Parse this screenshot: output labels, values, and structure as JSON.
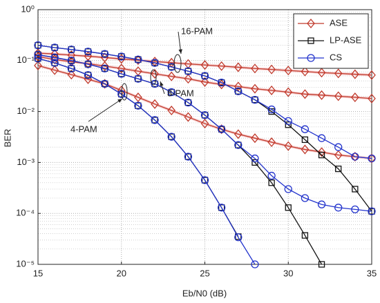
{
  "chart_data": {
    "type": "line",
    "xlabel": "Eb/N0 (dB)",
    "ylabel": "BER",
    "x": [
      15,
      16,
      17,
      18,
      19,
      20,
      21,
      22,
      23,
      24,
      25,
      26,
      27,
      28,
      29,
      30,
      31,
      32,
      33,
      34,
      35
    ],
    "xlim": [
      15,
      35
    ],
    "ylim": [
      1e-05,
      1
    ],
    "log_y": true,
    "grid": true,
    "minor_grid": true,
    "legend": "upper right",
    "xticks": [
      15,
      20,
      25,
      30,
      35
    ],
    "yticks": [
      {
        "value": 1,
        "label": "10⁰"
      },
      {
        "value": 0.1,
        "label": "10⁻¹"
      },
      {
        "value": 0.01,
        "label": "10⁻²"
      },
      {
        "value": 0.001,
        "label": "10⁻³"
      },
      {
        "value": 0.0001,
        "label": "10⁻⁴"
      },
      {
        "value": 1e-05,
        "label": "10⁻⁵"
      }
    ],
    "annotations": [
      "16-PAM",
      "8-PAM",
      "4-PAM"
    ],
    "series": [
      {
        "name": "ASE",
        "color": "#c0392b",
        "marker": "diamond",
        "curves": [
          [
            0.14,
            0.135,
            0.128,
            0.122,
            0.115,
            0.108,
            0.102,
            0.096,
            0.091,
            0.086,
            0.082,
            0.078,
            0.074,
            0.07,
            0.067,
            0.064,
            0.061,
            0.058,
            0.056,
            0.054,
            0.052
          ],
          [
            0.12,
            0.105,
            0.095,
            0.087,
            0.078,
            0.07,
            0.062,
            0.055,
            0.049,
            0.044,
            0.038,
            0.034,
            0.031,
            0.028,
            0.026,
            0.024,
            0.022,
            0.021,
            0.02,
            0.019,
            0.018
          ],
          [
            0.08,
            0.065,
            0.053,
            0.043,
            0.035,
            0.026,
            0.019,
            0.014,
            0.0105,
            0.0078,
            0.0058,
            0.0045,
            0.0036,
            0.003,
            0.0025,
            0.0021,
            0.0018,
            0.0016,
            0.0014,
            0.0013,
            0.0012
          ]
        ]
      },
      {
        "name": "LP-ASE",
        "color": "#111111",
        "marker": "square",
        "curves": [
          [
            0.2,
            0.18,
            0.165,
            0.15,
            0.135,
            0.12,
            0.105,
            0.09,
            0.075,
            0.062,
            0.05,
            0.037,
            0.025,
            0.017,
            0.01,
            0.0055,
            0.0028,
            0.0014,
            0.00075,
            0.0003,
            0.00011
          ],
          [
            0.13,
            0.115,
            0.1,
            0.085,
            0.07,
            0.055,
            0.044,
            0.035,
            0.024,
            0.015,
            0.0085,
            0.0045,
            0.0022,
            0.001,
            0.0004,
            0.00013,
            3.7e-05,
            1e-05,
            null,
            null,
            null
          ],
          [
            0.11,
            0.09,
            0.07,
            0.052,
            0.035,
            0.022,
            0.013,
            0.0068,
            0.0032,
            0.0013,
            0.00045,
            0.00013,
            3.5e-05,
            null,
            null,
            null,
            null,
            null,
            null,
            null,
            null
          ]
        ]
      },
      {
        "name": "CS",
        "color": "#2233cc",
        "marker": "circle",
        "curves": [
          [
            0.2,
            0.18,
            0.165,
            0.15,
            0.135,
            0.12,
            0.105,
            0.09,
            0.075,
            0.062,
            0.05,
            0.037,
            0.025,
            0.017,
            0.011,
            0.0065,
            0.0045,
            0.003,
            0.002,
            0.0013,
            0.0012
          ],
          [
            0.13,
            0.115,
            0.1,
            0.085,
            0.07,
            0.055,
            0.044,
            0.035,
            0.024,
            0.015,
            0.0085,
            0.0045,
            0.0022,
            0.0012,
            0.00055,
            0.0003,
            0.0002,
            0.00015,
            0.00013,
            0.00012,
            0.00011
          ],
          [
            0.11,
            0.09,
            0.07,
            0.052,
            0.035,
            0.022,
            0.013,
            0.0068,
            0.0032,
            0.0013,
            0.00045,
            0.00013,
            3.4e-05,
            1e-05,
            null,
            null,
            null,
            null,
            null,
            null,
            null
          ]
        ]
      }
    ]
  }
}
